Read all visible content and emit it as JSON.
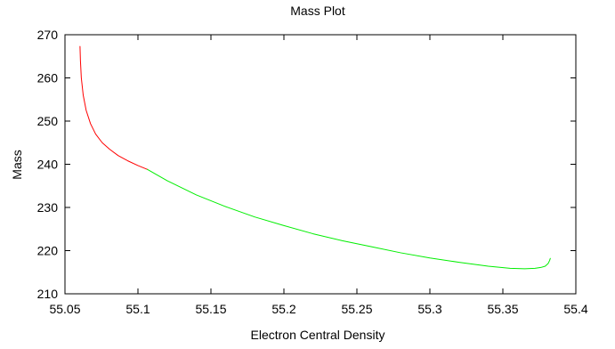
{
  "chart_data": {
    "type": "line",
    "title": "Mass Plot",
    "xlabel": "Electron Central Density",
    "ylabel": "Mass",
    "xlim": [
      55.05,
      55.4
    ],
    "ylim": [
      210,
      270
    ],
    "xticks": [
      "55.05",
      "55.1",
      "55.15",
      "55.2",
      "55.25",
      "55.3",
      "55.35",
      "55.4"
    ],
    "yticks": [
      "210",
      "220",
      "230",
      "240",
      "250",
      "260",
      "270"
    ],
    "grid": false,
    "legend": "none",
    "series": [
      {
        "color": "#ff0000",
        "x": [
          55.0603,
          55.0606,
          55.0612,
          55.0625,
          55.0645,
          55.0675,
          55.071,
          55.0755,
          55.0805,
          55.0865,
          55.093,
          55.1,
          55.1065
        ],
        "y": [
          267.3,
          264.0,
          260.0,
          256.0,
          252.5,
          249.4,
          247.0,
          245.0,
          243.5,
          242.0,
          240.8,
          239.7,
          238.8
        ]
      },
      {
        "color": "#00ee00",
        "x": [
          55.1065,
          55.12,
          55.14,
          55.16,
          55.18,
          55.2,
          55.22,
          55.24,
          55.26,
          55.28,
          55.3,
          55.32,
          55.34,
          55.355,
          55.365,
          55.372,
          55.376,
          55.379,
          55.381,
          55.382,
          55.3825
        ],
        "y": [
          238.8,
          236.2,
          232.9,
          230.2,
          227.8,
          225.8,
          223.9,
          222.3,
          220.9,
          219.5,
          218.3,
          217.3,
          216.4,
          215.9,
          215.8,
          215.9,
          216.1,
          216.4,
          217.0,
          217.7,
          218.2
        ]
      }
    ]
  }
}
